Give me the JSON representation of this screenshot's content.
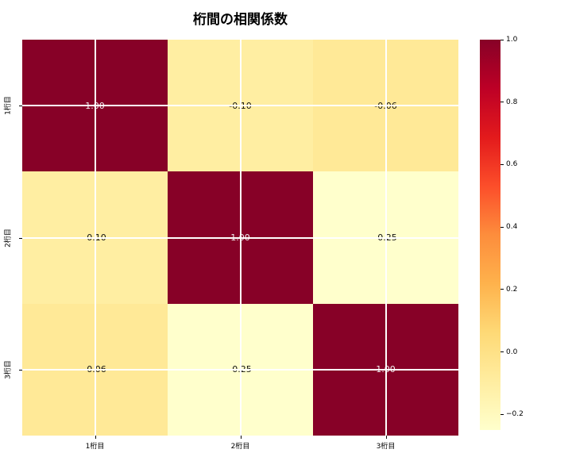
{
  "chart_data": {
    "type": "heatmap",
    "title": "桁間の相関係数",
    "categories": [
      "1桁目",
      "2桁目",
      "3桁目"
    ],
    "rows": [
      "1桁目",
      "2桁目",
      "3桁目"
    ],
    "values": [
      [
        1.0,
        -0.1,
        -0.06
      ],
      [
        -0.1,
        1.0,
        -0.25
      ],
      [
        -0.06,
        -0.25,
        1.0
      ]
    ],
    "cell_labels": [
      [
        "1.00",
        "-0.10",
        "-0.06"
      ],
      [
        "-0.10",
        "1.00",
        "-0.25"
      ],
      [
        "-0.06",
        "-0.25",
        "1.00"
      ]
    ],
    "vmin": -0.25,
    "vmax": 1.0,
    "colormap": "YlOrRd",
    "colormap_stops": [
      "#FFFFCC",
      "#FFEDA0",
      "#FED976",
      "#FEB24C",
      "#FD8D3C",
      "#FC4E2A",
      "#E31A1C",
      "#BD0026",
      "#870127"
    ],
    "colorbar_ticks": [
      {
        "label": "1.0",
        "value": 1.0
      },
      {
        "label": "0.8",
        "value": 0.8
      },
      {
        "label": "0.6",
        "value": 0.6
      },
      {
        "label": "0.4",
        "value": 0.4
      },
      {
        "label": "0.2",
        "value": 0.2
      },
      {
        "label": "0.0",
        "value": 0.0
      },
      {
        "label": "−0.2",
        "value": -0.2
      }
    ],
    "grid": true,
    "gridline_color": "#ffffff",
    "annotation_color_high": "#f2f2f2",
    "annotation_color_low": "#111111",
    "background": "#ffffff",
    "legend_position": "right-colorbar"
  }
}
